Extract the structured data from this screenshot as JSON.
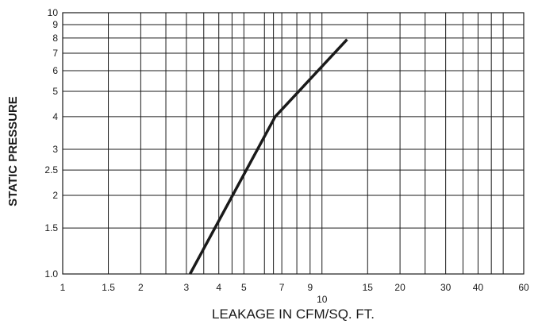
{
  "chart_data": {
    "type": "line",
    "title": "",
    "xlabel": "LEAKAGE IN CFM/SQ. FT.",
    "ylabel": "STATIC PRESSURE",
    "xscale": "log",
    "yscale": "log",
    "xlim": [
      1,
      60
    ],
    "ylim": [
      1.0,
      10
    ],
    "grid": true,
    "x_ticks": [
      {
        "value": 1,
        "label": "1"
      },
      {
        "value": 1.5,
        "label": "1.5"
      },
      {
        "value": 2,
        "label": "2"
      },
      {
        "value": 3,
        "label": "3"
      },
      {
        "value": 4,
        "label": "4"
      },
      {
        "value": 5,
        "label": "5"
      },
      {
        "value": 7,
        "label": "7"
      },
      {
        "value": 9,
        "label": "9"
      },
      {
        "value": 10,
        "label": "10"
      },
      {
        "value": 15,
        "label": "15"
      },
      {
        "value": 20,
        "label": "20"
      },
      {
        "value": 30,
        "label": "30"
      },
      {
        "value": 40,
        "label": "40"
      },
      {
        "value": 60,
        "label": "60"
      }
    ],
    "x_gridlines": [
      1.5,
      2,
      2.5,
      3,
      3.5,
      4,
      4.5,
      5,
      6,
      6.5,
      7,
      8,
      9,
      10,
      15,
      20,
      25,
      30,
      35,
      40,
      45,
      50,
      60
    ],
    "y_ticks": [
      {
        "value": 1.0,
        "label": "1.0"
      },
      {
        "value": 1.5,
        "label": "1.5"
      },
      {
        "value": 2,
        "label": "2"
      },
      {
        "value": 2.5,
        "label": "2.5"
      },
      {
        "value": 3,
        "label": "3"
      },
      {
        "value": 4,
        "label": "4"
      },
      {
        "value": 5,
        "label": "5"
      },
      {
        "value": 6,
        "label": "6"
      },
      {
        "value": 7,
        "label": "7"
      },
      {
        "value": 8,
        "label": "8"
      },
      {
        "value": 9,
        "label": "9"
      },
      {
        "value": 10,
        "label": "10"
      }
    ],
    "series": [
      {
        "x": [
          3.1,
          6.6,
          12.5
        ],
        "y": [
          1.0,
          4.0,
          7.9
        ]
      }
    ]
  }
}
